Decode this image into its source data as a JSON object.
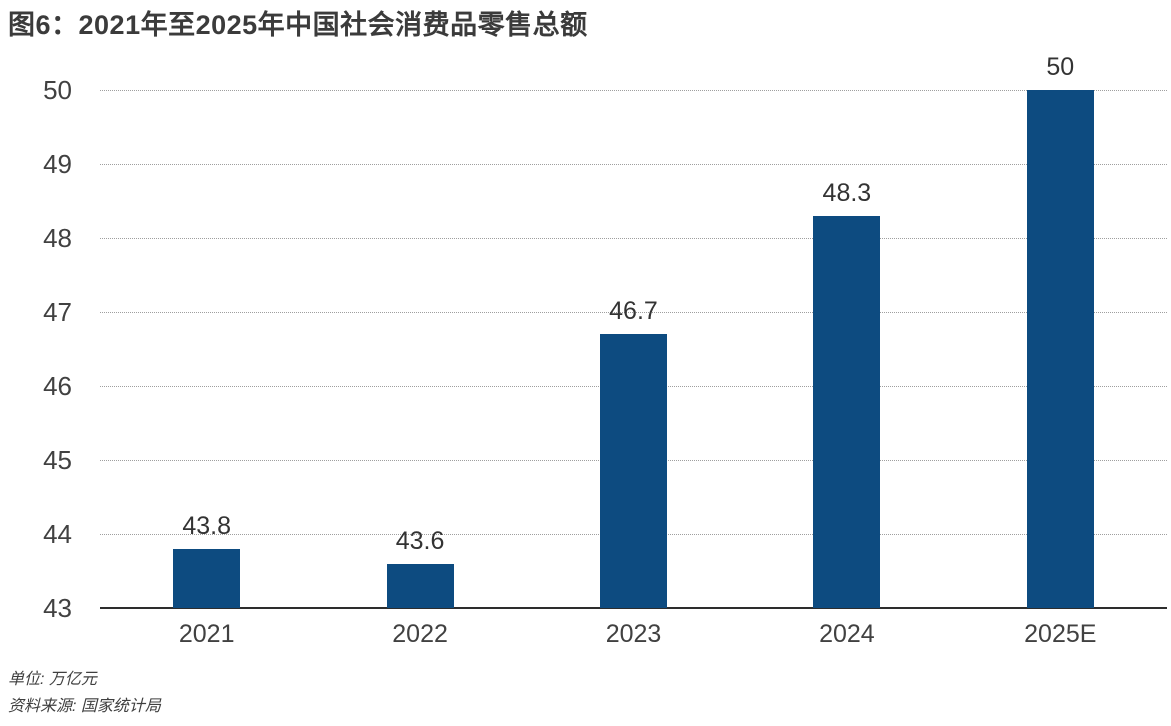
{
  "title": "图6：2021年至2025年中国社会消费品零售总额",
  "footer": {
    "unit": "单位: 万亿元",
    "source": "资料来源: 国家统计局"
  },
  "chart_data": {
    "type": "bar",
    "title": "图6：2021年至2025年中国社会消费品零售总额",
    "categories": [
      "2021",
      "2022",
      "2023",
      "2024",
      "2025E"
    ],
    "values": [
      43.8,
      43.6,
      46.7,
      48.3,
      50
    ],
    "value_labels": [
      "43.8",
      "43.6",
      "46.7",
      "48.3",
      "50"
    ],
    "xlabel": "",
    "ylabel": "",
    "unit": "万亿元",
    "source": "国家统计局",
    "ylim": [
      43,
      50
    ],
    "yticks": [
      43,
      44,
      45,
      46,
      47,
      48,
      49,
      50
    ],
    "grid": "horizontal-dotted",
    "legend_position": "none"
  },
  "colors": {
    "bar": "#0d4b80",
    "text": "#3f3f3f",
    "title_text": "#3b3b3b",
    "gridline": "#9f9f9f",
    "axis": "#2d2d2d",
    "background": "#ffffff"
  }
}
